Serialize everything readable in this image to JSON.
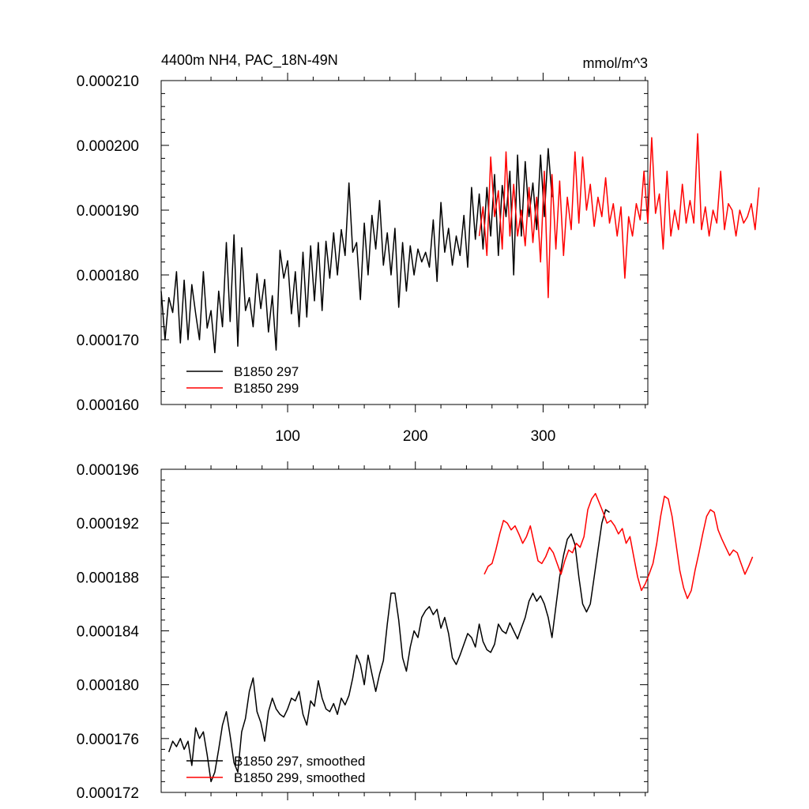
{
  "colors": {
    "series_297": "#000000",
    "series_299": "#ff0000",
    "axis": "#000000"
  },
  "chart_data": [
    {
      "type": "line",
      "title": "4400m NH4, PAC_18N-49N",
      "units": "mmol/m^3",
      "xlim": [
        1,
        382
      ],
      "ylim": [
        0.00016,
        0.00021
      ],
      "xticks": [
        100,
        200,
        300
      ],
      "xtick_labels": [
        "100",
        "200",
        "300"
      ],
      "yticks": [
        0.00016,
        0.00017,
        0.00018,
        0.00019,
        0.0002,
        0.00021
      ],
      "ytick_labels": [
        "0.000160",
        "0.000170",
        "0.000180",
        "0.000190",
        "0.000200",
        "0.000210"
      ],
      "legend_location": "bottom-left",
      "series": [
        {
          "name": "B1850 297",
          "color": "#000000",
          "x_start": 1,
          "x_step": 3,
          "values": [
            0.0001775,
            0.00017,
            0.0001765,
            0.0001742,
            0.0001805,
            0.0001695,
            0.0001792,
            0.00017,
            0.0001785,
            0.000174,
            0.00017,
            0.0001805,
            0.0001718,
            0.0001745,
            0.000168,
            0.0001775,
            0.000172,
            0.000185,
            0.0001728,
            0.0001862,
            0.000169,
            0.0001842,
            0.0001745,
            0.0001765,
            0.000172,
            0.0001802,
            0.0001748,
            0.0001793,
            0.0001712,
            0.0001768,
            0.0001684,
            0.0001838,
            0.0001795,
            0.0001822,
            0.000174,
            0.0001805,
            0.000172,
            0.0001835,
            0.0001735,
            0.0001845,
            0.000176,
            0.000185,
            0.0001745,
            0.0001852,
            0.0001795,
            0.0001865,
            0.00018,
            0.000187,
            0.000183,
            0.0001942,
            0.0001835,
            0.000185,
            0.0001762,
            0.000188,
            0.00018,
            0.0001892,
            0.000184,
            0.0001915,
            0.0001815,
            0.0001865,
            0.00018,
            0.0001872,
            0.000175,
            0.000185,
            0.0001775,
            0.0001845,
            0.00018,
            0.000184,
            0.000182,
            0.0001835,
            0.0001812,
            0.0001885,
            0.000179,
            0.0001912,
            0.0001835,
            0.0001872,
            0.0001815,
            0.000186,
            0.000183,
            0.0001892,
            0.0001812,
            0.0001935,
            0.0001855,
            0.0001925,
            0.000184,
            0.0001935,
            0.000186,
            0.0001955,
            0.000183,
            0.0001938,
            0.000189,
            0.000196,
            0.00018,
            0.0001985,
            0.000186,
            0.0001975,
            0.000189,
            0.0001942,
            0.000187,
            0.0001985,
            0.000189,
            0.0001995,
            0.000192
          ]
        },
        {
          "name": "B1850 299",
          "color": "#ff0000",
          "x_start": 250,
          "x_step": 3,
          "values": [
            0.000186,
            0.0001905,
            0.000183,
            0.0001982,
            0.000189,
            0.000193,
            0.000184,
            0.000199,
            0.000186,
            0.000194,
            0.000186,
            0.00019,
            0.0001845,
            0.0001935,
            0.000185,
            0.000192,
            0.000182,
            0.000196,
            0.0001765,
            0.0001955,
            0.000184,
            0.0001945,
            0.000183,
            0.000192,
            0.000187,
            0.000199,
            0.000188,
            0.0001982,
            0.00019,
            0.000194,
            0.0001875,
            0.000192,
            0.000189,
            0.000195,
            0.000188,
            0.000191,
            0.000186,
            0.0001905,
            0.0001795,
            0.000189,
            0.000186,
            0.000191,
            0.0001885,
            0.000196,
            0.000188,
            0.0002012,
            0.0001895,
            0.0001925,
            0.000184,
            0.000196,
            0.000186,
            0.00019,
            0.000187,
            0.000194,
            0.000188,
            0.0001915,
            0.000188,
            0.0002018,
            0.000187,
            0.0001905,
            0.000186,
            0.00019,
            0.000188,
            0.000196,
            0.000187,
            0.000191,
            0.00019,
            0.000186,
            0.00019,
            0.000188,
            0.000189,
            0.000191,
            0.000187,
            0.0001935
          ]
        }
      ]
    },
    {
      "type": "line",
      "title": "",
      "xlim": [
        1,
        382
      ],
      "ylim": [
        0.000172,
        0.000196
      ],
      "xticks": [
        100,
        200,
        300
      ],
      "xtick_labels": [],
      "yticks": [
        0.000172,
        0.000176,
        0.00018,
        0.000184,
        0.000188,
        0.000192,
        0.000196
      ],
      "ytick_labels": [
        "0.000172",
        "0.000176",
        "0.000180",
        "0.000184",
        "0.000188",
        "0.000192",
        "0.000196"
      ],
      "legend_location": "bottom-left",
      "series": [
        {
          "name": "B1850 297, smoothed",
          "color": "#000000",
          "x_start": 7,
          "x_step": 3,
          "values": [
            0.000175,
            0.0001758,
            0.0001754,
            0.000176,
            0.0001752,
            0.0001758,
            0.000174,
            0.0001768,
            0.000176,
            0.0001765,
            0.0001748,
            0.0001728,
            0.0001735,
            0.0001752,
            0.000177,
            0.000178,
            0.0001762,
            0.0001742,
            0.0001735,
            0.0001765,
            0.0001775,
            0.0001795,
            0.0001805,
            0.000178,
            0.0001772,
            0.0001758,
            0.000178,
            0.000179,
            0.0001782,
            0.0001778,
            0.0001776,
            0.0001782,
            0.000179,
            0.0001788,
            0.0001795,
            0.0001778,
            0.000177,
            0.0001788,
            0.0001784,
            0.0001803,
            0.000179,
            0.0001782,
            0.000178,
            0.0001786,
            0.0001778,
            0.000179,
            0.0001785,
            0.0001792,
            0.0001805,
            0.0001822,
            0.0001815,
            0.00018,
            0.0001822,
            0.0001808,
            0.0001795,
            0.0001808,
            0.0001818,
            0.0001845,
            0.0001868,
            0.0001868,
            0.0001848,
            0.000182,
            0.000181,
            0.0001828,
            0.000184,
            0.0001835,
            0.000185,
            0.0001855,
            0.0001858,
            0.0001852,
            0.0001856,
            0.0001842,
            0.000185,
            0.0001838,
            0.000182,
            0.0001815,
            0.0001822,
            0.000183,
            0.0001838,
            0.0001835,
            0.0001828,
            0.0001845,
            0.0001832,
            0.0001826,
            0.0001824,
            0.000183,
            0.0001845,
            0.000184,
            0.0001838,
            0.0001846,
            0.000184,
            0.0001834,
            0.0001842,
            0.000185,
            0.0001862,
            0.0001868,
            0.0001862,
            0.0001866,
            0.000186,
            0.000185,
            0.0001835,
            0.0001858,
            0.000188,
            0.0001896,
            0.0001908,
            0.0001912,
            0.0001904,
            0.000188,
            0.000186,
            0.0001854,
            0.000186,
            0.000188,
            0.00019,
            0.000192,
            0.000193,
            0.0001928
          ]
        },
        {
          "name": "B1850 299, smoothed",
          "color": "#ff0000",
          "x_start": 254,
          "x_step": 3,
          "values": [
            0.0001882,
            0.0001888,
            0.000189,
            0.00019,
            0.0001912,
            0.0001922,
            0.000192,
            0.0001915,
            0.0001918,
            0.0001912,
            0.0001905,
            0.000191,
            0.0001918,
            0.0001905,
            0.0001892,
            0.000189,
            0.0001895,
            0.0001902,
            0.0001898,
            0.000189,
            0.0001882,
            0.0001892,
            0.00019,
            0.0001898,
            0.0001905,
            0.0001902,
            0.000191,
            0.000193,
            0.0001938,
            0.0001942,
            0.0001935,
            0.0001928,
            0.000192,
            0.0001922,
            0.0001918,
            0.0001912,
            0.0001916,
            0.0001905,
            0.000191,
            0.0001895,
            0.000188,
            0.000187,
            0.0001875,
            0.0001882,
            0.000189,
            0.0001905,
            0.0001925,
            0.000194,
            0.0001938,
            0.0001925,
            0.0001905,
            0.0001885,
            0.0001872,
            0.0001864,
            0.000187,
            0.0001885,
            0.0001898,
            0.0001912,
            0.0001925,
            0.000193,
            0.0001928,
            0.0001915,
            0.0001908,
            0.0001902,
            0.0001896,
            0.00019,
            0.0001898,
            0.000189,
            0.0001882,
            0.0001888,
            0.0001895
          ]
        }
      ]
    }
  ]
}
